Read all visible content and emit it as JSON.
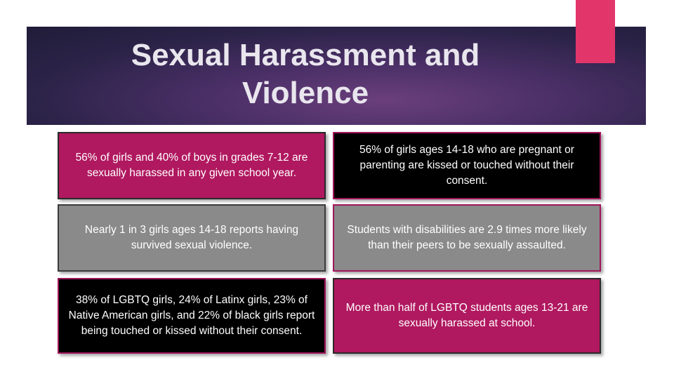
{
  "slide": {
    "title_line1": "Sexual Harassment and",
    "title_line2": "Violence"
  },
  "cards": [
    {
      "text": "56% of girls and 40% of boys in grades 7-12 are sexually harassed in any given school year."
    },
    {
      "text": "56% of girls ages 14-18 who are pregnant or parenting are kissed or touched without their consent."
    },
    {
      "text": "Nearly 1 in 3 girls ages 14-18 reports having survived sexual violence."
    },
    {
      "text": "Students with disabilities are 2.9 times more likely than their peers to be sexually assaulted."
    },
    {
      "text": "38% of LGBTQ girls, 24% of Latinx girls, 23% of Native American girls, and 22% of black girls report being touched or kissed without their consent."
    },
    {
      "text": "More than half of LGBTQ students ages 13-21 are sexually harassed at school."
    }
  ],
  "colors": {
    "accent_pink": "#e2366b",
    "card_pink": "#b0185f",
    "card_gray": "#8a8a8a",
    "card_black": "#000000",
    "title_band": "#3a2a58"
  }
}
